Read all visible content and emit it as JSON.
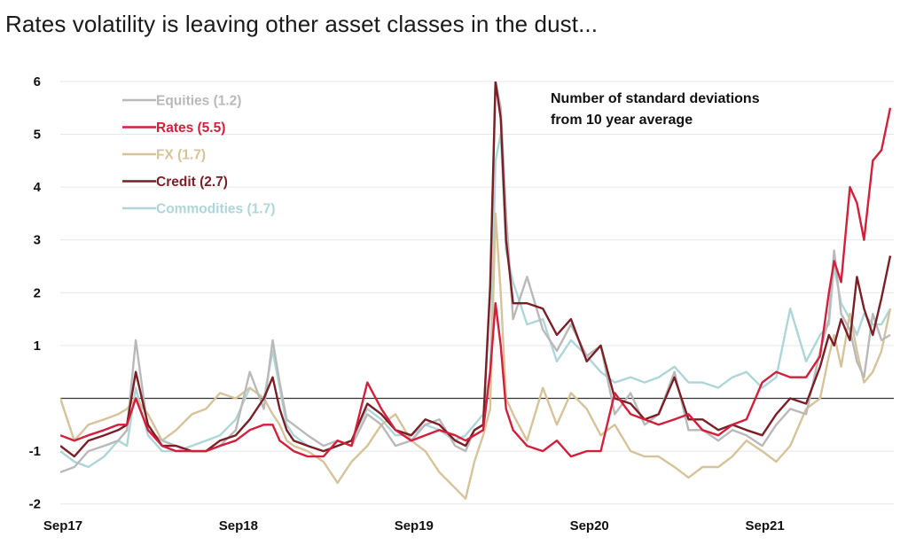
{
  "title": "Rates volatility is leaving other asset classes in the dust...",
  "chart_data": {
    "type": "line",
    "note_lines": [
      "Number of standard deviations",
      "from 10 year average"
    ],
    "ylim": [
      -2,
      6
    ],
    "y_ticks": [
      "6",
      "5",
      "4",
      "3",
      "2",
      "1",
      "-1",
      "-2"
    ],
    "y_tick_values": [
      6,
      5,
      4,
      3,
      2,
      1,
      -1,
      -2
    ],
    "xlim": [
      2017.67,
      2022.42
    ],
    "x_ticks": [
      "Sep17",
      "Sep18",
      "Sep19",
      "Sep20",
      "Sep21"
    ],
    "x_tick_values": [
      2017.67,
      2018.67,
      2019.67,
      2020.67,
      2021.67
    ],
    "grid": "horizontal",
    "zero_line": true,
    "legend_position": "top-left",
    "series": [
      {
        "name": "Equities (1.2)",
        "color": "#b9b9b9",
        "x": [
          2017.67,
          2017.75,
          2017.83,
          2017.92,
          2018.0,
          2018.05,
          2018.1,
          2018.17,
          2018.25,
          2018.33,
          2018.42,
          2018.5,
          2018.58,
          2018.67,
          2018.75,
          2018.83,
          2018.88,
          2018.92,
          2018.96,
          2019.0,
          2019.08,
          2019.17,
          2019.25,
          2019.33,
          2019.42,
          2019.5,
          2019.58,
          2019.67,
          2019.75,
          2019.83,
          2019.92,
          2019.98,
          2020.03,
          2020.08,
          2020.12,
          2020.15,
          2020.18,
          2020.21,
          2020.25,
          2020.33,
          2020.42,
          2020.5,
          2020.58,
          2020.67,
          2020.75,
          2020.83,
          2020.92,
          2021.0,
          2021.08,
          2021.17,
          2021.25,
          2021.33,
          2021.42,
          2021.5,
          2021.58,
          2021.67,
          2021.75,
          2021.83,
          2021.92,
          2022.0,
          2022.05,
          2022.08,
          2022.12,
          2022.17,
          2022.21,
          2022.25,
          2022.3,
          2022.35,
          2022.4
        ],
        "y": [
          -1.4,
          -1.3,
          -1.0,
          -0.9,
          -0.8,
          -0.6,
          1.1,
          -0.6,
          -0.8,
          -0.9,
          -1.0,
          -1.0,
          -0.9,
          -0.6,
          0.5,
          -0.2,
          1.1,
          0.3,
          -0.4,
          -0.5,
          -0.7,
          -0.9,
          -0.8,
          -0.9,
          -0.3,
          -0.5,
          -0.9,
          -0.8,
          -0.5,
          -0.4,
          -0.9,
          -1.0,
          -0.6,
          -0.5,
          2.2,
          6.0,
          5.5,
          3.5,
          1.5,
          2.3,
          1.3,
          0.9,
          1.4,
          0.8,
          1.0,
          -0.3,
          0.1,
          -0.5,
          -0.3,
          0.5,
          -0.6,
          -0.6,
          -0.8,
          -0.6,
          -0.7,
          -0.9,
          -0.5,
          -0.2,
          -0.3,
          0.9,
          1.5,
          2.8,
          1.6,
          1.3,
          0.7,
          0.4,
          1.6,
          1.1,
          1.2
        ]
      },
      {
        "name": "Rates (5.5)",
        "color": "#d21f3c",
        "x": [
          2017.67,
          2017.75,
          2017.83,
          2017.92,
          2018.0,
          2018.05,
          2018.1,
          2018.17,
          2018.25,
          2018.33,
          2018.42,
          2018.5,
          2018.58,
          2018.67,
          2018.75,
          2018.83,
          2018.88,
          2018.92,
          2018.96,
          2019.0,
          2019.08,
          2019.17,
          2019.25,
          2019.33,
          2019.42,
          2019.5,
          2019.58,
          2019.67,
          2019.75,
          2019.83,
          2019.92,
          2019.98,
          2020.03,
          2020.08,
          2020.12,
          2020.15,
          2020.18,
          2020.21,
          2020.25,
          2020.33,
          2020.42,
          2020.5,
          2020.58,
          2020.67,
          2020.75,
          2020.83,
          2020.92,
          2021.0,
          2021.08,
          2021.17,
          2021.25,
          2021.33,
          2021.42,
          2021.5,
          2021.58,
          2021.67,
          2021.75,
          2021.83,
          2021.92,
          2022.0,
          2022.05,
          2022.08,
          2022.12,
          2022.17,
          2022.21,
          2022.25,
          2022.3,
          2022.35,
          2022.4
        ],
        "y": [
          -0.7,
          -0.8,
          -0.7,
          -0.6,
          -0.5,
          -0.5,
          0.0,
          -0.6,
          -0.9,
          -1.0,
          -1.0,
          -1.0,
          -0.9,
          -0.8,
          -0.6,
          -0.5,
          -0.5,
          -0.8,
          -0.9,
          -1.0,
          -1.1,
          -1.1,
          -0.8,
          -0.9,
          0.3,
          -0.2,
          -0.6,
          -0.8,
          -0.7,
          -0.6,
          -0.7,
          -0.8,
          -0.7,
          -0.6,
          0.5,
          1.8,
          1.0,
          -0.2,
          -0.6,
          -0.9,
          -1.0,
          -0.8,
          -1.1,
          -1.0,
          -1.0,
          0.1,
          -0.3,
          -0.4,
          -0.5,
          -0.4,
          -0.3,
          -0.6,
          -0.7,
          -0.5,
          -0.4,
          0.3,
          0.5,
          0.4,
          0.4,
          0.8,
          2.0,
          2.6,
          2.2,
          4.0,
          3.7,
          3.0,
          4.5,
          4.7,
          5.5
        ]
      },
      {
        "name": "FX (1.7)",
        "color": "#d6c39a",
        "x": [
          2017.67,
          2017.75,
          2017.83,
          2017.92,
          2018.0,
          2018.05,
          2018.1,
          2018.17,
          2018.25,
          2018.33,
          2018.42,
          2018.5,
          2018.58,
          2018.67,
          2018.75,
          2018.83,
          2018.88,
          2018.92,
          2018.96,
          2019.0,
          2019.08,
          2019.17,
          2019.25,
          2019.33,
          2019.42,
          2019.5,
          2019.58,
          2019.67,
          2019.75,
          2019.83,
          2019.92,
          2019.98,
          2020.03,
          2020.08,
          2020.12,
          2020.15,
          2020.18,
          2020.21,
          2020.25,
          2020.33,
          2020.42,
          2020.5,
          2020.58,
          2020.67,
          2020.75,
          2020.83,
          2020.92,
          2021.0,
          2021.08,
          2021.17,
          2021.25,
          2021.33,
          2021.42,
          2021.5,
          2021.58,
          2021.67,
          2021.75,
          2021.83,
          2021.92,
          2022.0,
          2022.05,
          2022.08,
          2022.12,
          2022.17,
          2022.21,
          2022.25,
          2022.3,
          2022.35,
          2022.4
        ],
        "y": [
          0.0,
          -0.8,
          -0.5,
          -0.4,
          -0.3,
          -0.2,
          0.0,
          -0.3,
          -0.8,
          -0.6,
          -0.3,
          -0.2,
          0.1,
          0.0,
          0.2,
          0.0,
          -0.3,
          -0.5,
          -0.8,
          -0.9,
          -1.0,
          -1.2,
          -1.6,
          -1.2,
          -0.9,
          -0.5,
          -0.3,
          -0.8,
          -1.0,
          -1.4,
          -1.7,
          -1.9,
          -1.2,
          -0.7,
          -0.2,
          3.5,
          2.0,
          0.0,
          -0.3,
          -0.8,
          0.2,
          -0.5,
          0.1,
          -0.2,
          -0.7,
          -0.5,
          -1.0,
          -1.1,
          -1.1,
          -1.3,
          -1.5,
          -1.3,
          -1.3,
          -1.1,
          -0.8,
          -1.0,
          -1.2,
          -0.9,
          -0.2,
          0.0,
          0.8,
          1.2,
          0.6,
          1.6,
          0.9,
          0.3,
          0.5,
          0.9,
          1.7
        ]
      },
      {
        "name": "Credit (2.7)",
        "color": "#7a1f26",
        "x": [
          2017.67,
          2017.75,
          2017.83,
          2017.92,
          2018.0,
          2018.05,
          2018.1,
          2018.17,
          2018.25,
          2018.33,
          2018.42,
          2018.5,
          2018.58,
          2018.67,
          2018.75,
          2018.83,
          2018.88,
          2018.92,
          2018.96,
          2019.0,
          2019.08,
          2019.17,
          2019.25,
          2019.33,
          2019.42,
          2019.5,
          2019.58,
          2019.67,
          2019.75,
          2019.83,
          2019.92,
          2019.98,
          2020.03,
          2020.08,
          2020.12,
          2020.15,
          2020.18,
          2020.21,
          2020.25,
          2020.33,
          2020.42,
          2020.5,
          2020.58,
          2020.67,
          2020.75,
          2020.83,
          2020.92,
          2021.0,
          2021.08,
          2021.17,
          2021.25,
          2021.33,
          2021.42,
          2021.5,
          2021.58,
          2021.67,
          2021.75,
          2021.83,
          2021.92,
          2022.0,
          2022.05,
          2022.08,
          2022.12,
          2022.17,
          2022.21,
          2022.25,
          2022.3,
          2022.35,
          2022.4
        ],
        "y": [
          -0.9,
          -1.1,
          -0.8,
          -0.7,
          -0.6,
          -0.5,
          0.5,
          -0.5,
          -0.9,
          -0.9,
          -1.0,
          -1.0,
          -0.8,
          -0.7,
          -0.4,
          0.0,
          0.4,
          -0.2,
          -0.6,
          -0.8,
          -0.9,
          -1.0,
          -0.9,
          -0.8,
          -0.1,
          -0.3,
          -0.6,
          -0.7,
          -0.4,
          -0.5,
          -0.8,
          -0.9,
          -0.6,
          -0.5,
          2.1,
          6.0,
          5.3,
          3.0,
          1.8,
          1.8,
          1.7,
          1.2,
          1.5,
          0.7,
          1.0,
          0.0,
          -0.1,
          -0.4,
          -0.3,
          0.4,
          -0.4,
          -0.4,
          -0.6,
          -0.5,
          -0.6,
          -0.7,
          -0.3,
          0.0,
          -0.1,
          0.6,
          1.2,
          1.0,
          1.5,
          1.1,
          2.3,
          1.7,
          1.2,
          1.9,
          2.7
        ]
      },
      {
        "name": "Commodities (1.7)",
        "color": "#aed6d8",
        "x": [
          2017.67,
          2017.75,
          2017.83,
          2017.92,
          2018.0,
          2018.05,
          2018.1,
          2018.17,
          2018.25,
          2018.33,
          2018.42,
          2018.5,
          2018.58,
          2018.67,
          2018.75,
          2018.83,
          2018.88,
          2018.92,
          2018.96,
          2019.0,
          2019.08,
          2019.17,
          2019.25,
          2019.33,
          2019.42,
          2019.5,
          2019.58,
          2019.67,
          2019.75,
          2019.83,
          2019.92,
          2019.98,
          2020.03,
          2020.08,
          2020.12,
          2020.15,
          2020.18,
          2020.21,
          2020.25,
          2020.33,
          2020.42,
          2020.5,
          2020.58,
          2020.67,
          2020.75,
          2020.83,
          2020.92,
          2021.0,
          2021.08,
          2021.17,
          2021.25,
          2021.33,
          2021.42,
          2021.5,
          2021.58,
          2021.67,
          2021.75,
          2021.83,
          2021.92,
          2022.0,
          2022.05,
          2022.08,
          2022.12,
          2022.17,
          2022.21,
          2022.25,
          2022.3,
          2022.35,
          2022.4
        ],
        "y": [
          -1.0,
          -1.2,
          -1.3,
          -1.1,
          -0.8,
          -0.9,
          0.2,
          -0.7,
          -1.0,
          -1.0,
          -0.9,
          -0.8,
          -0.7,
          -0.4,
          0.2,
          0.0,
          0.9,
          0.2,
          -0.5,
          -0.7,
          -0.9,
          -1.0,
          -0.9,
          -0.8,
          -0.2,
          -0.4,
          -0.7,
          -0.7,
          -0.5,
          -0.6,
          -0.8,
          -0.7,
          -0.5,
          -0.3,
          0.5,
          4.5,
          5.0,
          2.8,
          2.2,
          1.4,
          1.5,
          0.7,
          1.1,
          0.8,
          0.5,
          0.3,
          0.4,
          0.3,
          0.4,
          0.6,
          0.3,
          0.3,
          0.2,
          0.4,
          0.5,
          0.2,
          0.4,
          1.7,
          0.7,
          1.2,
          1.4,
          2.5,
          1.8,
          1.5,
          1.2,
          1.6,
          1.4,
          1.4,
          1.7
        ]
      }
    ]
  }
}
